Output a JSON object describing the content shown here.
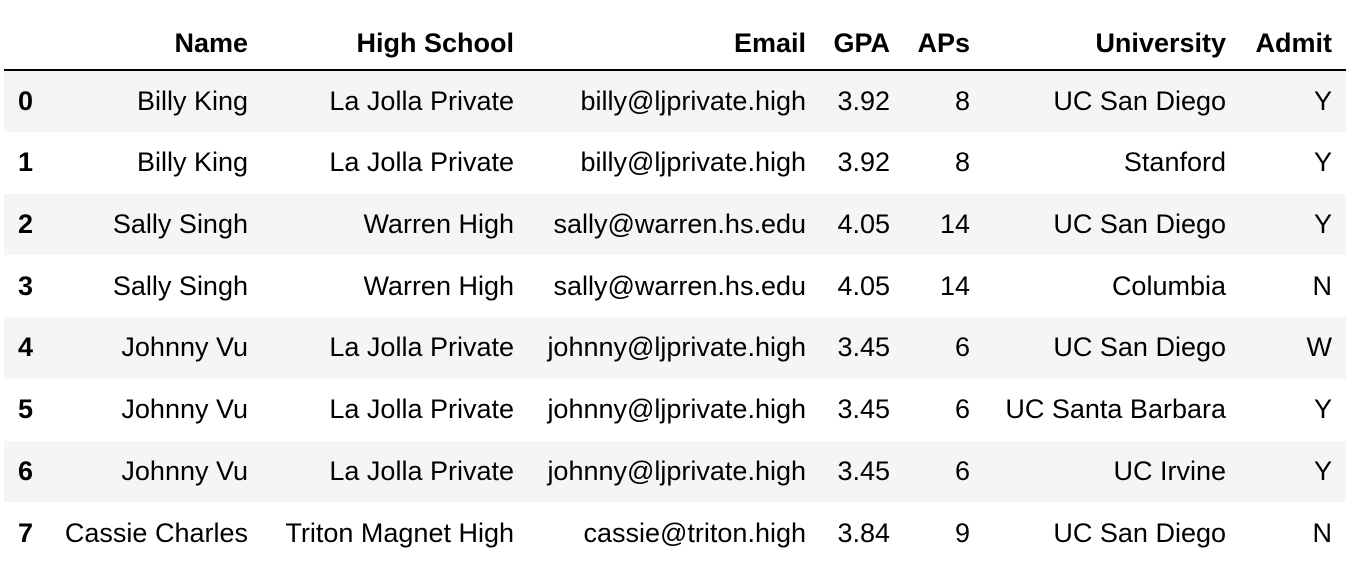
{
  "table": {
    "columns": [
      "Name",
      "High School",
      "Email",
      "GPA",
      "APs",
      "University",
      "Admit"
    ],
    "rows": [
      {
        "index": "0",
        "cells": [
          "Billy King",
          "La Jolla Private",
          "billy@ljprivate.high",
          "3.92",
          "8",
          "UC San Diego",
          "Y"
        ]
      },
      {
        "index": "1",
        "cells": [
          "Billy King",
          "La Jolla Private",
          "billy@ljprivate.high",
          "3.92",
          "8",
          "Stanford",
          "Y"
        ]
      },
      {
        "index": "2",
        "cells": [
          "Sally Singh",
          "Warren High",
          "sally@warren.hs.edu",
          "4.05",
          "14",
          "UC San Diego",
          "Y"
        ]
      },
      {
        "index": "3",
        "cells": [
          "Sally Singh",
          "Warren High",
          "sally@warren.hs.edu",
          "4.05",
          "14",
          "Columbia",
          "N"
        ]
      },
      {
        "index": "4",
        "cells": [
          "Johnny Vu",
          "La Jolla Private",
          "johnny@ljprivate.high",
          "3.45",
          "6",
          "UC San Diego",
          "W"
        ]
      },
      {
        "index": "5",
        "cells": [
          "Johnny Vu",
          "La Jolla Private",
          "johnny@ljprivate.high",
          "3.45",
          "6",
          "UC Santa Barbara",
          "Y"
        ]
      },
      {
        "index": "6",
        "cells": [
          "Johnny Vu",
          "La Jolla Private",
          "johnny@ljprivate.high",
          "3.45",
          "6",
          "UC Irvine",
          "Y"
        ]
      },
      {
        "index": "7",
        "cells": [
          "Cassie Charles",
          "Triton Magnet High",
          "cassie@triton.high",
          "3.84",
          "9",
          "UC San Diego",
          "N"
        ]
      }
    ]
  },
  "colors": {
    "stripe": "#f5f5f5",
    "background": "#ffffff",
    "text": "#000000",
    "header_rule": "#000000"
  }
}
